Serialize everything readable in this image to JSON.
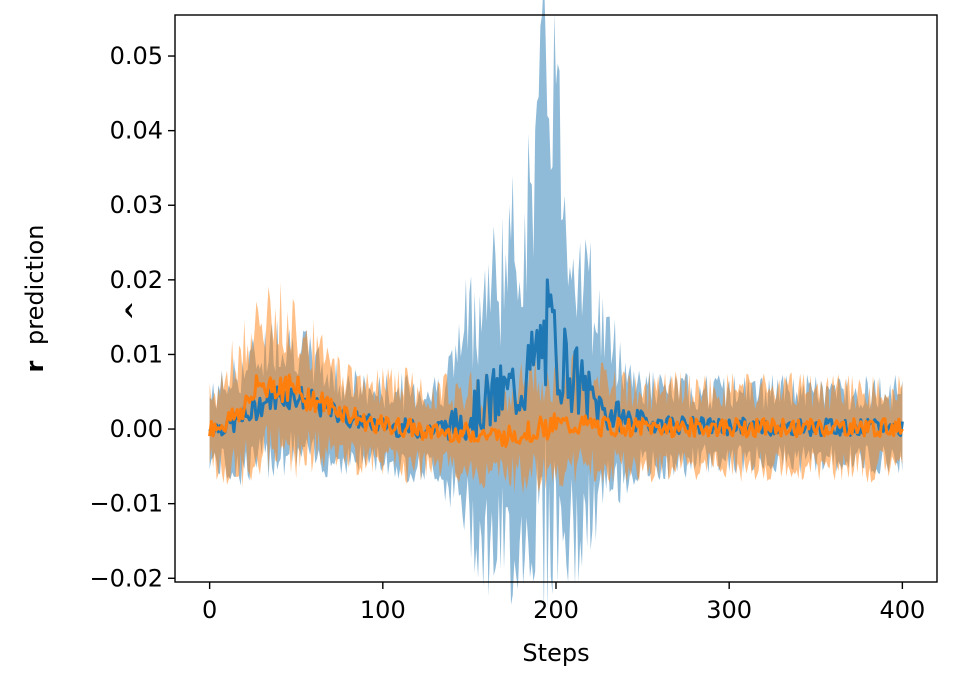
{
  "chart_data": {
    "type": "line",
    "xlabel": "Steps",
    "ylabel_hat": "r",
    "ylabel_text": "prediction",
    "xlim": [
      -20,
      420
    ],
    "ylim": [
      -0.0205,
      0.0555
    ],
    "xticks": [
      0,
      100,
      200,
      300,
      400
    ],
    "xtick_labels": [
      "0",
      "100",
      "200",
      "300",
      "400"
    ],
    "yticks": [
      -0.02,
      -0.01,
      0.0,
      0.01,
      0.02,
      0.03,
      0.04,
      0.05
    ],
    "ytick_labels": [
      "−0.02",
      "−0.01",
      "0.00",
      "0.01",
      "0.02",
      "0.03",
      "0.04",
      "0.05"
    ],
    "grid": false,
    "legend": "none",
    "series": [
      {
        "color": "#1f77b4",
        "band_opacity": 0.5,
        "x": [
          0,
          10,
          20,
          30,
          40,
          50,
          60,
          70,
          80,
          90,
          100,
          110,
          120,
          130,
          140,
          150,
          160,
          170,
          180,
          185,
          190,
          195,
          200,
          205,
          210,
          220,
          230,
          240,
          250,
          260,
          270,
          280,
          290,
          300,
          310,
          320,
          330,
          340,
          350,
          360,
          370,
          380,
          390,
          400
        ],
        "mean": [
          0.0,
          0.0005,
          0.0015,
          0.0035,
          0.0045,
          0.0045,
          0.0035,
          0.0025,
          0.0015,
          0.001,
          0.0005,
          0.0002,
          0.0,
          0.0,
          0.0005,
          0.002,
          0.0035,
          0.0045,
          0.006,
          0.008,
          0.01,
          0.0125,
          0.0105,
          0.009,
          0.007,
          0.004,
          0.002,
          0.0015,
          0.001,
          0.0008,
          0.0006,
          0.0005,
          0.0004,
          0.0003,
          0.0004,
          0.0003,
          0.0002,
          0.0003,
          0.0002,
          0.0003,
          0.0002,
          0.0002,
          0.0002,
          0.0002
        ],
        "upper": [
          0.004,
          0.006,
          0.008,
          0.01,
          0.012,
          0.011,
          0.009,
          0.007,
          0.006,
          0.005,
          0.005,
          0.005,
          0.005,
          0.005,
          0.008,
          0.015,
          0.018,
          0.022,
          0.025,
          0.03,
          0.04,
          0.05,
          0.045,
          0.03,
          0.025,
          0.018,
          0.012,
          0.008,
          0.006,
          0.005,
          0.005,
          0.005,
          0.005,
          0.005,
          0.005,
          0.005,
          0.005,
          0.005,
          0.005,
          0.005,
          0.005,
          0.005,
          0.005,
          0.005
        ],
        "lower": [
          -0.004,
          -0.005,
          -0.005,
          -0.004,
          -0.003,
          -0.003,
          -0.004,
          -0.004,
          -0.004,
          -0.004,
          -0.004,
          -0.005,
          -0.005,
          -0.005,
          -0.008,
          -0.012,
          -0.015,
          -0.016,
          -0.015,
          -0.013,
          -0.012,
          -0.012,
          -0.012,
          -0.014,
          -0.015,
          -0.012,
          -0.008,
          -0.006,
          -0.005,
          -0.005,
          -0.005,
          -0.004,
          -0.004,
          -0.004,
          -0.004,
          -0.004,
          -0.004,
          -0.004,
          -0.004,
          -0.004,
          -0.004,
          -0.004,
          -0.004,
          -0.004
        ]
      },
      {
        "color": "#ff7f0e",
        "band_opacity": 0.5,
        "x": [
          0,
          10,
          20,
          30,
          40,
          50,
          60,
          70,
          80,
          90,
          100,
          110,
          120,
          130,
          140,
          150,
          160,
          170,
          180,
          190,
          200,
          210,
          220,
          230,
          240,
          250,
          260,
          270,
          280,
          290,
          300,
          310,
          320,
          330,
          340,
          350,
          360,
          370,
          380,
          390,
          400
        ],
        "mean": [
          0.0,
          0.001,
          0.003,
          0.006,
          0.006,
          0.005,
          0.004,
          0.003,
          0.002,
          0.001,
          0.0005,
          0.0002,
          0.0,
          -0.0005,
          -0.0005,
          -0.0005,
          -0.0008,
          -0.001,
          -0.0005,
          0.0,
          0.0005,
          0.0005,
          0.0005,
          0.0003,
          0.0003,
          0.0002,
          0.0002,
          0.0002,
          0.0002,
          0.0002,
          0.0002,
          0.0002,
          0.0002,
          0.0002,
          0.0002,
          0.0002,
          0.0002,
          0.0002,
          0.0002,
          0.0002,
          0.0002
        ],
        "upper": [
          0.004,
          0.007,
          0.011,
          0.014,
          0.015,
          0.014,
          0.011,
          0.008,
          0.007,
          0.006,
          0.006,
          0.006,
          0.005,
          0.005,
          0.005,
          0.005,
          0.005,
          0.005,
          0.006,
          0.007,
          0.007,
          0.007,
          0.006,
          0.006,
          0.005,
          0.005,
          0.005,
          0.005,
          0.005,
          0.005,
          0.005,
          0.005,
          0.005,
          0.005,
          0.005,
          0.005,
          0.005,
          0.005,
          0.005,
          0.005,
          0.005
        ],
        "lower": [
          -0.004,
          -0.006,
          -0.005,
          -0.003,
          -0.003,
          -0.003,
          -0.003,
          -0.003,
          -0.004,
          -0.004,
          -0.004,
          -0.005,
          -0.005,
          -0.005,
          -0.005,
          -0.006,
          -0.006,
          -0.006,
          -0.006,
          -0.006,
          -0.006,
          -0.005,
          -0.005,
          -0.005,
          -0.005,
          -0.005,
          -0.005,
          -0.005,
          -0.005,
          -0.005,
          -0.005,
          -0.005,
          -0.005,
          -0.005,
          -0.005,
          -0.005,
          -0.005,
          -0.005,
          -0.005,
          -0.005,
          -0.005
        ]
      }
    ]
  }
}
